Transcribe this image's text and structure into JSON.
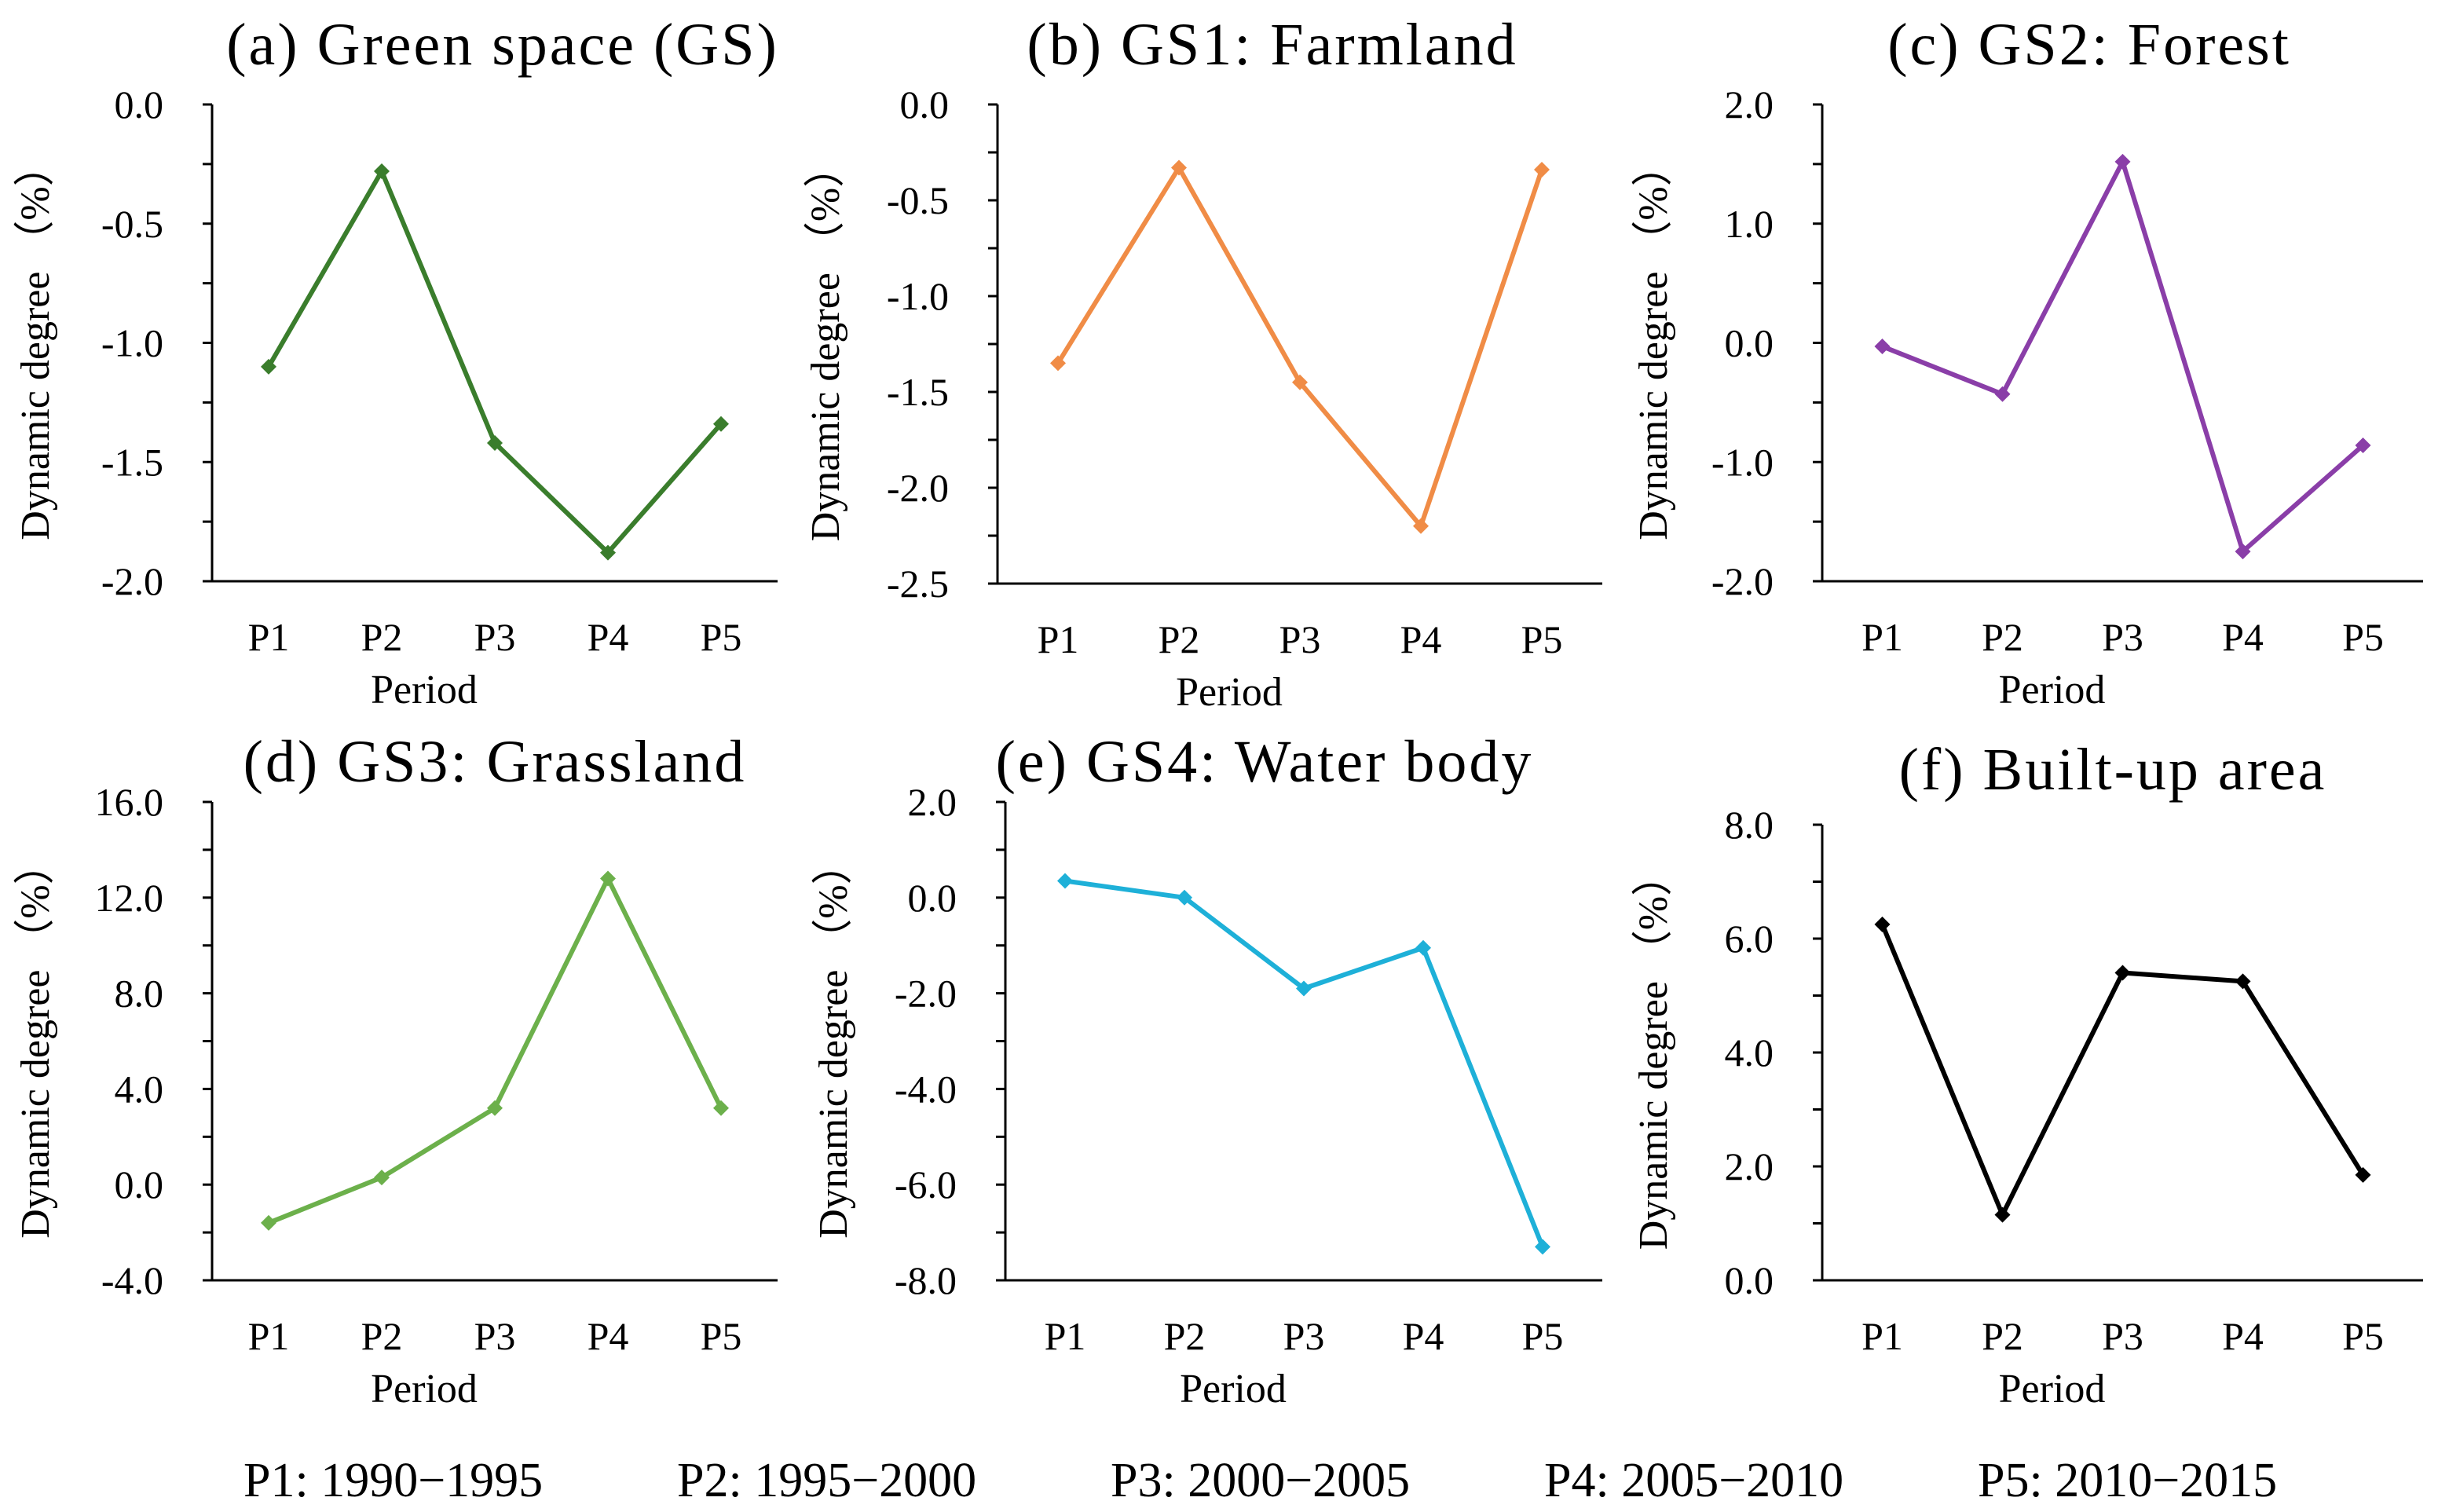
{
  "chart_data": [
    {
      "type": "line",
      "title": "(a) Green space (GS)",
      "categories": [
        "P1",
        "P2",
        "P3",
        "P4",
        "P5"
      ],
      "values": [
        -1.1,
        -0.28,
        -1.42,
        -1.88,
        -1.34
      ],
      "xlabel": "Period",
      "ylabel": "Dynamic degree （%）",
      "ylim": [
        -2.0,
        0.0
      ],
      "yticks": [
        "0.0",
        "-0.5",
        "-1.0",
        "-1.5",
        "-2.0"
      ],
      "color": "#3a7d2c"
    },
    {
      "type": "line",
      "title": "(b) GS1: Farmland",
      "categories": [
        "P1",
        "P2",
        "P3",
        "P4",
        "P5"
      ],
      "values": [
        -1.35,
        -0.33,
        -1.45,
        -2.2,
        -0.34
      ],
      "xlabel": "Period",
      "ylabel": "Dynamic degree （%）",
      "ylim": [
        -2.5,
        0.0
      ],
      "yticks": [
        "0.0",
        "-0.5",
        "-1.0",
        "-1.5",
        "-2.0",
        "-2.5"
      ],
      "color": "#f08c46"
    },
    {
      "type": "line",
      "title": "(c) GS2: Forest",
      "categories": [
        "P1",
        "P2",
        "P3",
        "P4",
        "P5"
      ],
      "values": [
        -0.03,
        -0.43,
        1.52,
        -1.75,
        -0.86
      ],
      "xlabel": "Period",
      "ylabel": "Dynamic degree （%）",
      "ylim": [
        -2.0,
        2.0
      ],
      "yticks": [
        "2.0",
        "1.0",
        "0.0",
        "-1.0",
        "-2.0"
      ],
      "color": "#8a3ea8"
    },
    {
      "type": "line",
      "title": "(d) GS3: Grassland",
      "categories": [
        "P1",
        "P2",
        "P3",
        "P4",
        "P5"
      ],
      "values": [
        -1.6,
        0.3,
        3.2,
        12.8,
        3.2
      ],
      "xlabel": "Period",
      "ylabel": "Dynamic degree （%）",
      "ylim": [
        -4.0,
        16.0
      ],
      "yticks": [
        "16.0",
        "12.0",
        "8.0",
        "4.0",
        "0.0",
        "-4.0"
      ],
      "color": "#6cb04b"
    },
    {
      "type": "line",
      "title": "(e) GS4: Water body",
      "categories": [
        "P1",
        "P2",
        "P3",
        "P4",
        "P5"
      ],
      "values": [
        0.35,
        0.0,
        -1.9,
        -1.05,
        -7.3
      ],
      "xlabel": "Period",
      "ylabel": "Dynamic degree （%）",
      "ylim": [
        -8.0,
        2.0
      ],
      "yticks": [
        "2.0",
        "0.0",
        "-2.0",
        "-4.0",
        "-6.0",
        "-8.0"
      ],
      "color": "#1eb0d8"
    },
    {
      "type": "line",
      "title": "(f) Built-up area",
      "categories": [
        "P1",
        "P2",
        "P3",
        "P4",
        "P5"
      ],
      "values": [
        6.25,
        1.15,
        5.4,
        5.25,
        1.85
      ],
      "xlabel": "Period",
      "ylabel": "Dynamic degree （%）",
      "ylim": [
        0.0,
        8.0
      ],
      "yticks": [
        "8.0",
        "6.0",
        "4.0",
        "2.0",
        "0.0"
      ],
      "color": "#000000"
    }
  ],
  "footer": [
    "P1: 1990−1995",
    "P2: 1995−2000",
    "P3: 2000−2005",
    "P4: 2005−2010",
    "P5: 2010−2015"
  ]
}
